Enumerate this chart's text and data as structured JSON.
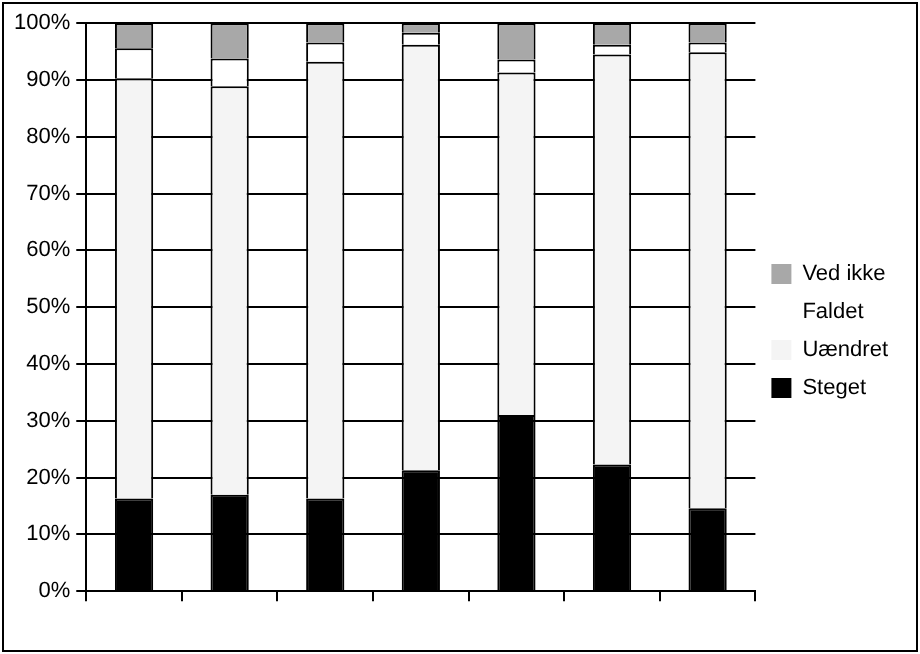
{
  "chart_data": {
    "type": "bar",
    "stacked": true,
    "categories": [
      null,
      null,
      null,
      null,
      null,
      null,
      null
    ],
    "series": [
      {
        "name": "Steget",
        "color": "#000000",
        "values": [
          16.3,
          17.0,
          16.3,
          21.3,
          31.0,
          22.3,
          14.6
        ]
      },
      {
        "name": "Uændret",
        "color": "#f4f4f4",
        "values": [
          74.0,
          71.9,
          76.9,
          74.9,
          60.3,
          72.2,
          80.3
        ]
      },
      {
        "name": "Faldet",
        "color": "#ffffff",
        "values": [
          5.3,
          4.9,
          3.4,
          2.1,
          2.3,
          1.7,
          1.7
        ]
      },
      {
        "name": "Ved ikke",
        "color": "#a8a8a8",
        "values": [
          4.4,
          6.2,
          3.4,
          1.7,
          6.4,
          3.8,
          3.4
        ]
      }
    ],
    "ylim": [
      0,
      100
    ],
    "yticks": [
      {
        "value": 0,
        "label": "0%"
      },
      {
        "value": 10,
        "label": "10%"
      },
      {
        "value": 20,
        "label": "20%"
      },
      {
        "value": 30,
        "label": "30%"
      },
      {
        "value": 40,
        "label": "40%"
      },
      {
        "value": 50,
        "label": "50%"
      },
      {
        "value": 60,
        "label": "60%"
      },
      {
        "value": 70,
        "label": "70%"
      },
      {
        "value": 80,
        "label": "80%"
      },
      {
        "value": 90,
        "label": "90%"
      },
      {
        "value": 100,
        "label": "100%"
      }
    ],
    "grid": "y",
    "legend": "right"
  }
}
